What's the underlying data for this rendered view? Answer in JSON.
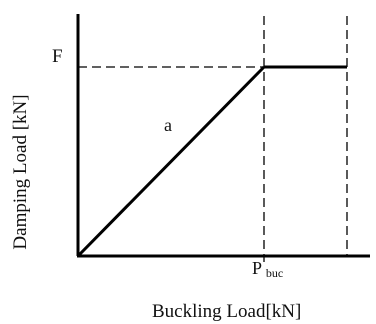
{
  "diagram": {
    "y_axis_label": "Damping Load [kN]",
    "x_axis_label": "Buckling Load[kN]",
    "force_label": "F",
    "line_label": "a",
    "buckling_label_main": "P",
    "buckling_label_sub": "buc"
  }
}
